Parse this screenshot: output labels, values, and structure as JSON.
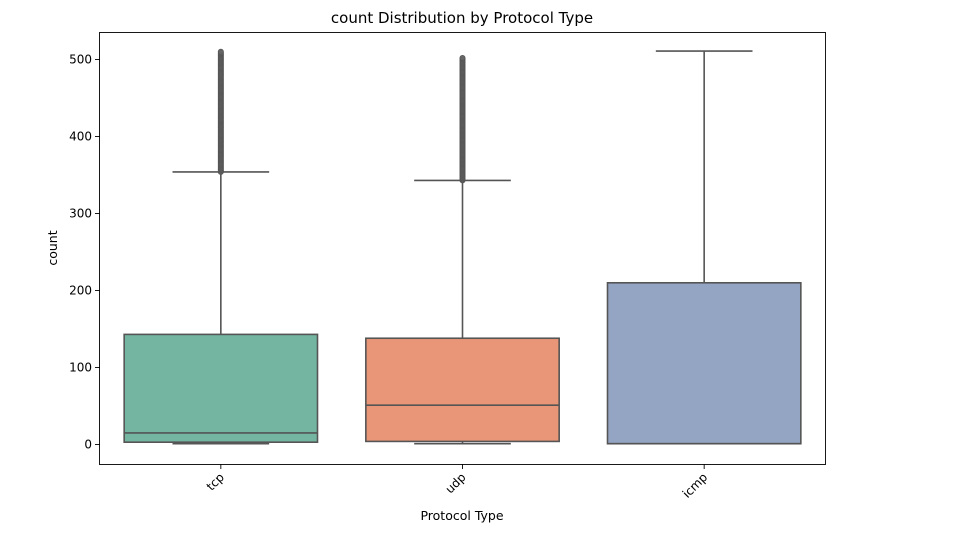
{
  "chart_data": {
    "type": "box",
    "title": "count Distribution by Protocol Type",
    "xlabel": "Protocol Type",
    "ylabel": "count",
    "ylim": [
      -25,
      537
    ],
    "yticks": [
      0,
      100,
      200,
      300,
      400,
      500
    ],
    "categories": [
      "tcp",
      "udp",
      "icmp"
    ],
    "grid": false,
    "boxes": [
      {
        "category": "tcp",
        "min": 1,
        "q1": 3,
        "median": 15,
        "q3": 143,
        "whisker_low": 1,
        "whisker_high": 354,
        "outliers_from": 354,
        "outliers_to": 511,
        "color": "#73b5a0"
      },
      {
        "category": "udp",
        "min": 1,
        "q1": 4,
        "median": 51,
        "q3": 138,
        "whisker_low": 1,
        "whisker_high": 343,
        "outliers_from": 343,
        "outliers_to": 503,
        "color": "#e89677"
      },
      {
        "category": "icmp",
        "min": 1,
        "q1": 1,
        "median": 1,
        "q3": 210,
        "whisker_low": 1,
        "whisker_high": 511,
        "outliers_from": null,
        "outliers_to": null,
        "color": "#94a4c3"
      }
    ]
  }
}
